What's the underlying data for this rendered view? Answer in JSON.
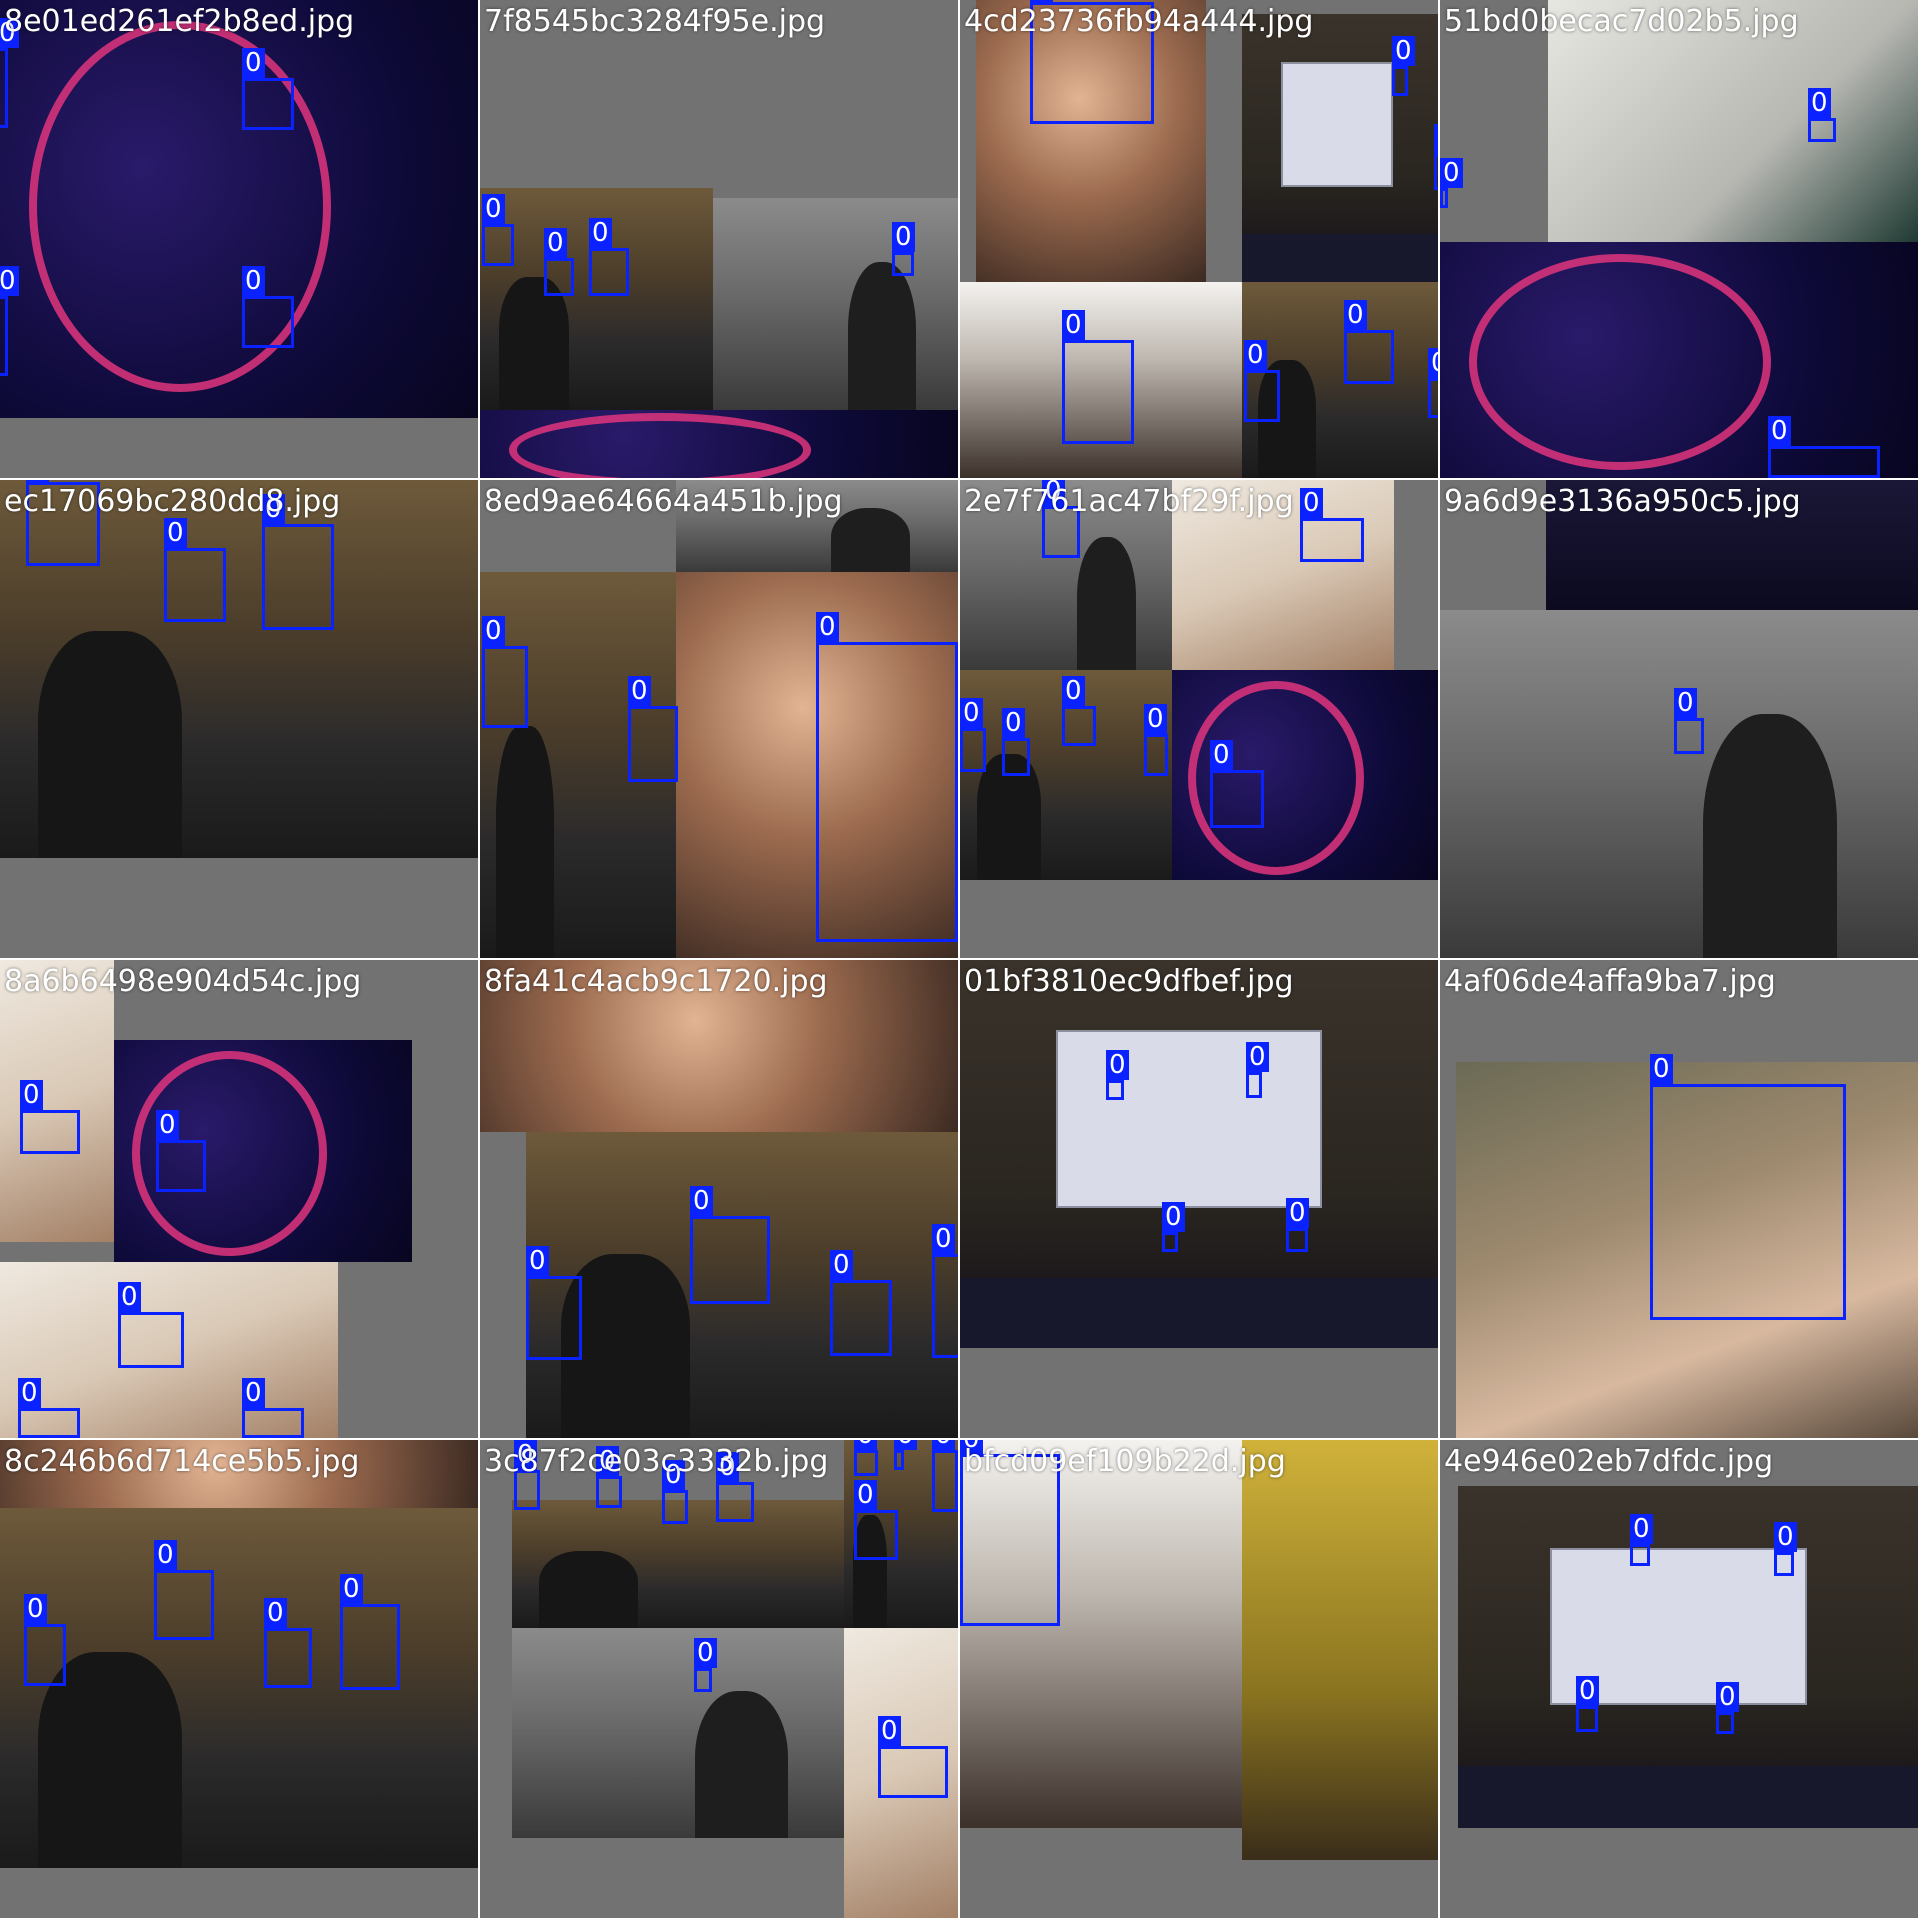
{
  "mosaic": {
    "tiles": [
      {
        "filename": "8e01ed261ef2b8ed.jpg",
        "labels": [
          "0",
          "0",
          "0",
          "0"
        ]
      },
      {
        "filename": "7f8545bc3284f95e.jpg",
        "labels": [
          "0",
          "0",
          "0",
          "0"
        ]
      },
      {
        "filename": "4cd23736fb94a444.jpg",
        "labels": [
          "0",
          "0",
          "0",
          "0",
          "0",
          "0",
          "0",
          "0"
        ]
      },
      {
        "filename": "51bd0becac7d02b5.jpg",
        "labels": [
          "0",
          "0",
          "0"
        ]
      },
      {
        "filename": "ec17069bc280dd8.jpg",
        "labels": [
          "0",
          "0",
          "0"
        ]
      },
      {
        "filename": "8ed9ae64664a451b.jpg",
        "labels": [
          "0",
          "0",
          "0"
        ]
      },
      {
        "filename": "2e7f761ac47bf29f.jpg",
        "labels": [
          "0",
          "0",
          "0",
          "0",
          "0",
          "0",
          "0"
        ]
      },
      {
        "filename": "9a6d9e3136a950c5.jpg",
        "labels": [
          "0"
        ]
      },
      {
        "filename": "8a6b6498e904d54c.jpg",
        "labels": [
          "0",
          "0",
          "0",
          "0",
          "0"
        ]
      },
      {
        "filename": "8fa41c4acb9c1720.jpg",
        "labels": [
          "0",
          "0",
          "0",
          "0"
        ]
      },
      {
        "filename": "01bf3810ec9dfbef.jpg",
        "labels": [
          "0",
          "0",
          "0",
          "0"
        ]
      },
      {
        "filename": "4af06de4affa9ba7.jpg",
        "labels": [
          "0"
        ]
      },
      {
        "filename": "8c246b6d714ce5b5.jpg",
        "labels": [
          "0",
          "0",
          "0",
          "0"
        ]
      },
      {
        "filename": "3c87f2ce03c3332b.jpg",
        "labels": [
          "0",
          "0",
          "0",
          "0",
          "0",
          "0",
          "0",
          "0",
          "0",
          "0"
        ]
      },
      {
        "filename": "bfcd09ef109b22d.jpg",
        "labels": [
          "0"
        ]
      },
      {
        "filename": "4e946e02eb7dfdc.jpg",
        "labels": [
          "0",
          "0",
          "0",
          "0"
        ]
      }
    ]
  },
  "colors": {
    "box": "#0a22ff",
    "padding": "#727272"
  }
}
